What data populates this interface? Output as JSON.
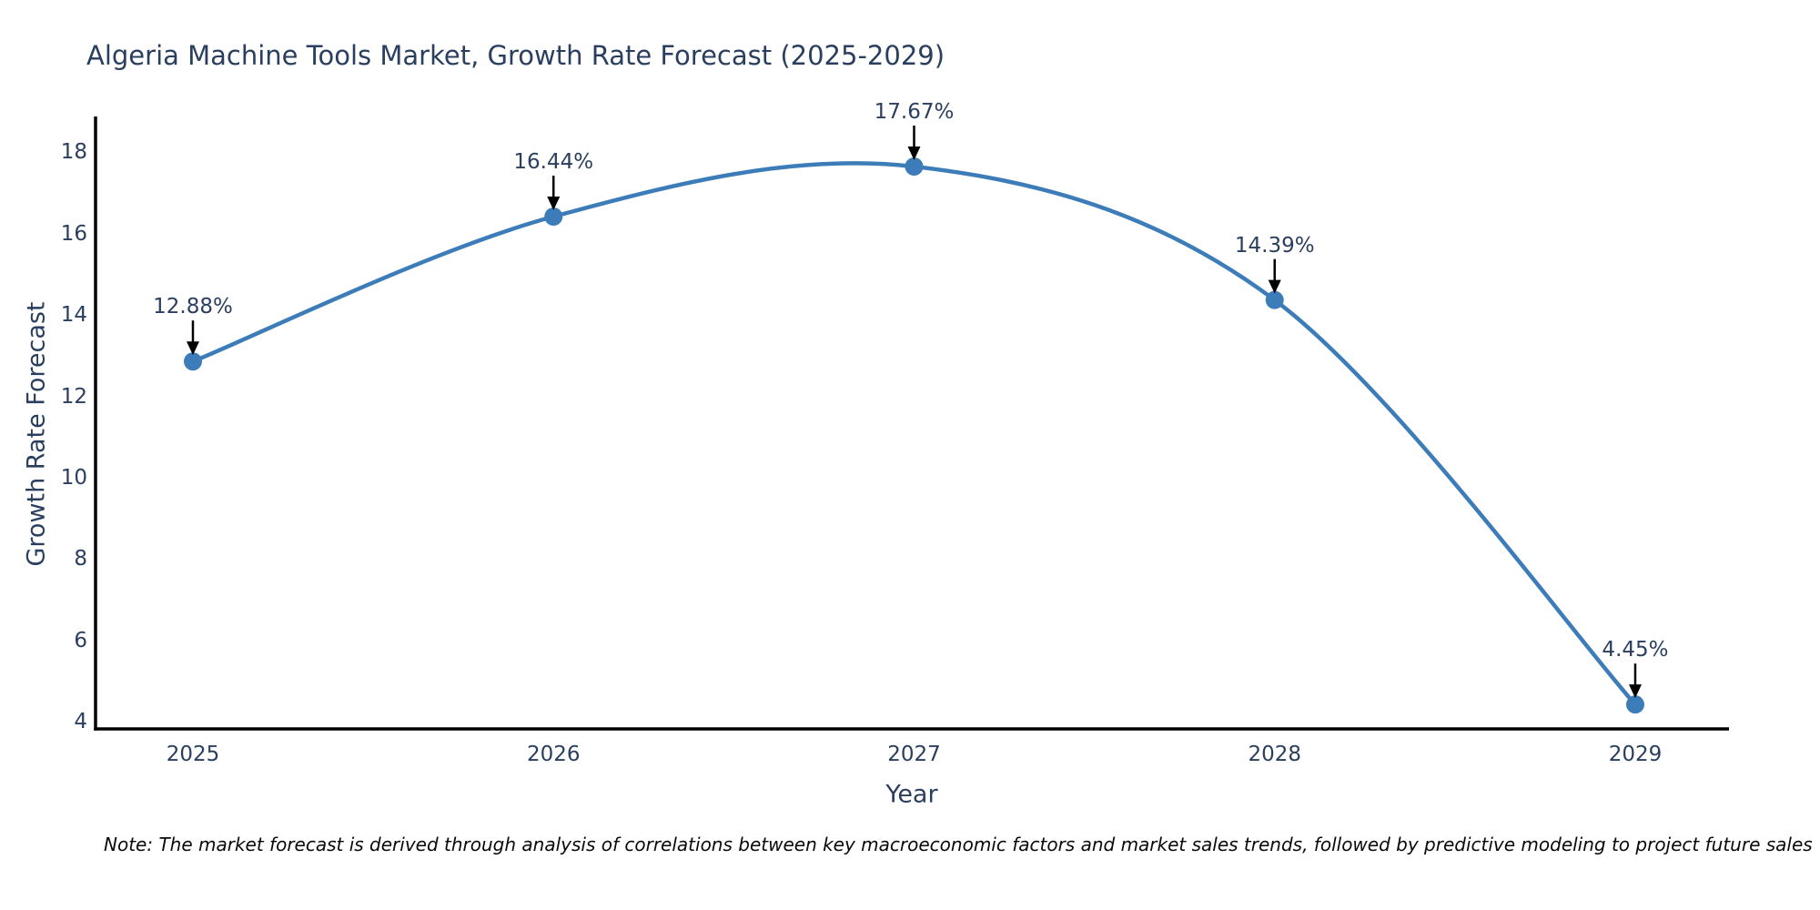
{
  "chart_data": {
    "type": "line",
    "line_shape": "spline",
    "title": "Algeria Machine Tools Market, Growth Rate Forecast (2025-2029)",
    "xlabel": "Year",
    "ylabel": "Growth Rate Forecast",
    "x": [
      2025,
      2026,
      2027,
      2028,
      2029
    ],
    "y": [
      12.88,
      16.44,
      17.67,
      14.39,
      4.45
    ],
    "point_labels": [
      "12.88%",
      "16.44%",
      "17.67%",
      "14.39%",
      "4.45%"
    ],
    "xticks": [
      "2025",
      "2026",
      "2027",
      "2028",
      "2029"
    ],
    "xtick_values": [
      2025,
      2026,
      2027,
      2028,
      2029
    ],
    "yticks": [
      "4",
      "6",
      "8",
      "10",
      "12",
      "14",
      "16",
      "18"
    ],
    "ytick_values": [
      4,
      6,
      8,
      10,
      12,
      14,
      16,
      18
    ],
    "xlim": [
      2024.73,
      2029.26
    ],
    "ylim": [
      3.85,
      18.9
    ],
    "grid": false,
    "legend": false,
    "line_color": "#3c7cb8",
    "marker_color": "#3c7cb8",
    "axis_color": "#000000",
    "text_color": "#2a3f5f",
    "annotation_arrow_color": "#000000",
    "note": "Note: The market forecast is derived through analysis of correlations between key macroeconomic factors and market sales trends, followed by predictive modeling to project future sales"
  }
}
